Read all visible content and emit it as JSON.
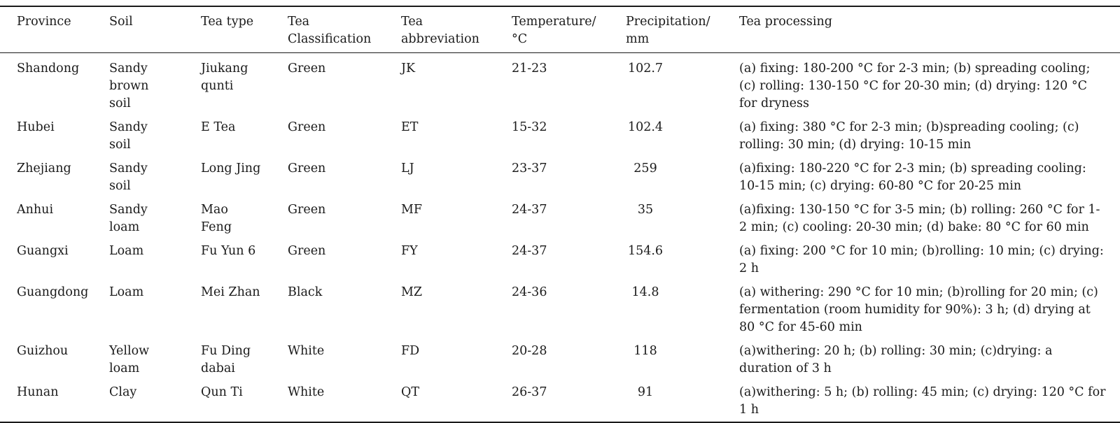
{
  "table": {
    "headers": [
      "Province",
      "Soil",
      "Tea type",
      "Tea Classification",
      "Tea abbreviation",
      "Temperature/ °C",
      "Precipitation/ mm",
      "Tea processing"
    ],
    "rows": [
      {
        "province": "Shandong",
        "soil": "Sandy brown soil",
        "tea_type": "Jiukang qunti",
        "classification": "Green",
        "abbreviation": "JK",
        "temperature": "21-23",
        "precipitation": "102.7",
        "processing": "(a) fixing: 180-200 °C for 2-3 min; (b) spreading cooling; (c) rolling: 130-150 °C for 20-30 min; (d) drying: 120 °C for dryness"
      },
      {
        "province": "Hubei",
        "soil": "Sandy soil",
        "tea_type": "E Tea",
        "classification": "Green",
        "abbreviation": "ET",
        "temperature": "15-32",
        "precipitation": "102.4",
        "processing": "(a) fixing: 380 °C for 2-3 min; (b)spreading cooling; (c) rolling: 30 min; (d) drying: 10-15 min"
      },
      {
        "province": "Zhejiang",
        "soil": "Sandy soil",
        "tea_type": "Long Jing",
        "classification": "Green",
        "abbreviation": "LJ",
        "temperature": "23-37",
        "precipitation": "259",
        "processing": "(a)fixing: 180-220 °C for 2-3 min; (b) spreading cooling: 10-15 min; (c) drying: 60-80 °C for 20-25 min"
      },
      {
        "province": "Anhui",
        "soil": "Sandy loam",
        "tea_type": "Mao Feng",
        "classification": "Green",
        "abbreviation": "MF",
        "temperature": "24-37",
        "precipitation": "35",
        "processing": "(a)fixing: 130-150 °C for 3-5 min; (b) rolling: 260 °C for 1-2 min; (c) cooling: 20-30 min; (d) bake: 80 °C for 60 min"
      },
      {
        "province": "Guangxi",
        "soil": "Loam",
        "tea_type": "Fu Yun 6",
        "classification": "Green",
        "abbreviation": "FY",
        "temperature": "24-37",
        "precipitation": "154.6",
        "processing": "(a) fixing: 200 °C for 10 min; (b)rolling: 10 min; (c) drying: 2 h"
      },
      {
        "province": "Guangdong",
        "soil": "Loam",
        "tea_type": "Mei Zhan",
        "classification": "Black",
        "abbreviation": "MZ",
        "temperature": "24-36",
        "precipitation": "14.8",
        "processing": "(a) withering: 290 °C for 10 min; (b)rolling for 20 min; (c) fermentation (room humidity for 90%): 3 h; (d) drying at 80 °C for 45-60 min"
      },
      {
        "province": "Guizhou",
        "soil": "Yellow loam",
        "tea_type": "Fu Ding dabai",
        "classification": "White",
        "abbreviation": "FD",
        "temperature": "20-28",
        "precipitation": "118",
        "processing": "(a)withering: 20 h; (b) rolling: 30 min; (c)drying: a duration of 3 h"
      },
      {
        "province": "Hunan",
        "soil": "Clay",
        "tea_type": "Qun Ti",
        "classification": "White",
        "abbreviation": "QT",
        "temperature": "26-37",
        "precipitation": "91",
        "processing": "(a)withering: 5 h; (b) rolling: 45 min; (c) drying: 120 °C for 1 h"
      }
    ]
  }
}
